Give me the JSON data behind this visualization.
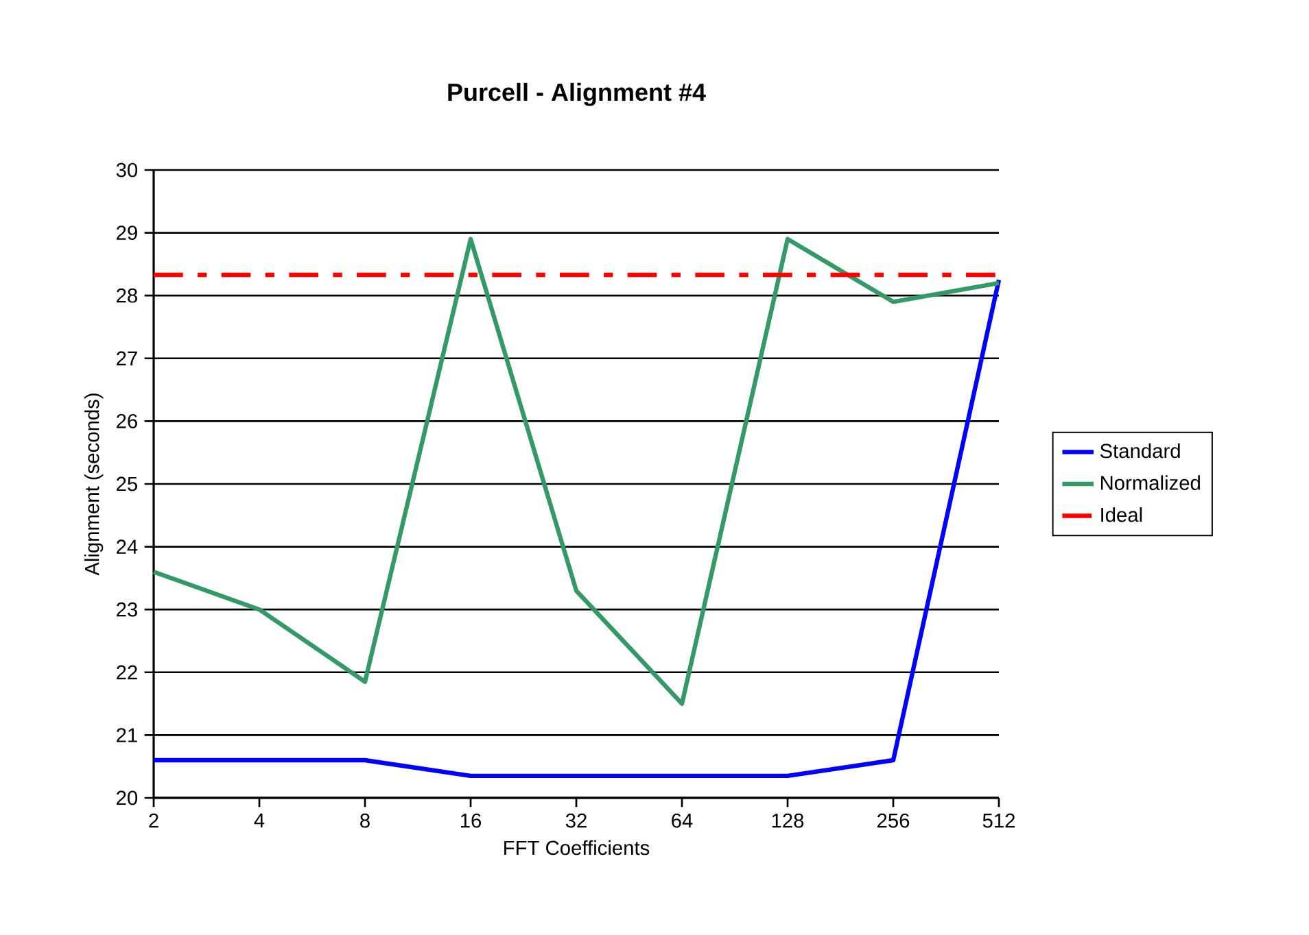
{
  "chart_data": {
    "type": "line",
    "title": "Purcell - Alignment #4",
    "xlabel": "FFT Coefficients",
    "ylabel": "Alignment (seconds)",
    "categories": [
      "2",
      "4",
      "8",
      "16",
      "32",
      "64",
      "128",
      "256",
      "512"
    ],
    "series": [
      {
        "name": "Standard",
        "color": "#0000ff",
        "line_style": "solid",
        "values": [
          20.6,
          20.6,
          20.6,
          20.35,
          20.35,
          20.35,
          20.35,
          20.6,
          28.25
        ]
      },
      {
        "name": "Normalized",
        "color": "#339966",
        "line_style": "solid",
        "values": [
          23.6,
          23.0,
          21.85,
          28.9,
          23.3,
          21.5,
          28.9,
          27.9,
          28.2
        ]
      },
      {
        "name": "Ideal",
        "color": "#ff0000",
        "line_style": "dashdot",
        "values": [
          28.33,
          28.33,
          28.33,
          28.33,
          28.33,
          28.33,
          28.33,
          28.33,
          28.33
        ]
      }
    ],
    "ylim": [
      20,
      30
    ],
    "yticks": [
      20,
      21,
      22,
      23,
      24,
      25,
      26,
      27,
      28,
      29,
      30
    ],
    "grid": "y",
    "legend": "right",
    "marker": "none"
  }
}
